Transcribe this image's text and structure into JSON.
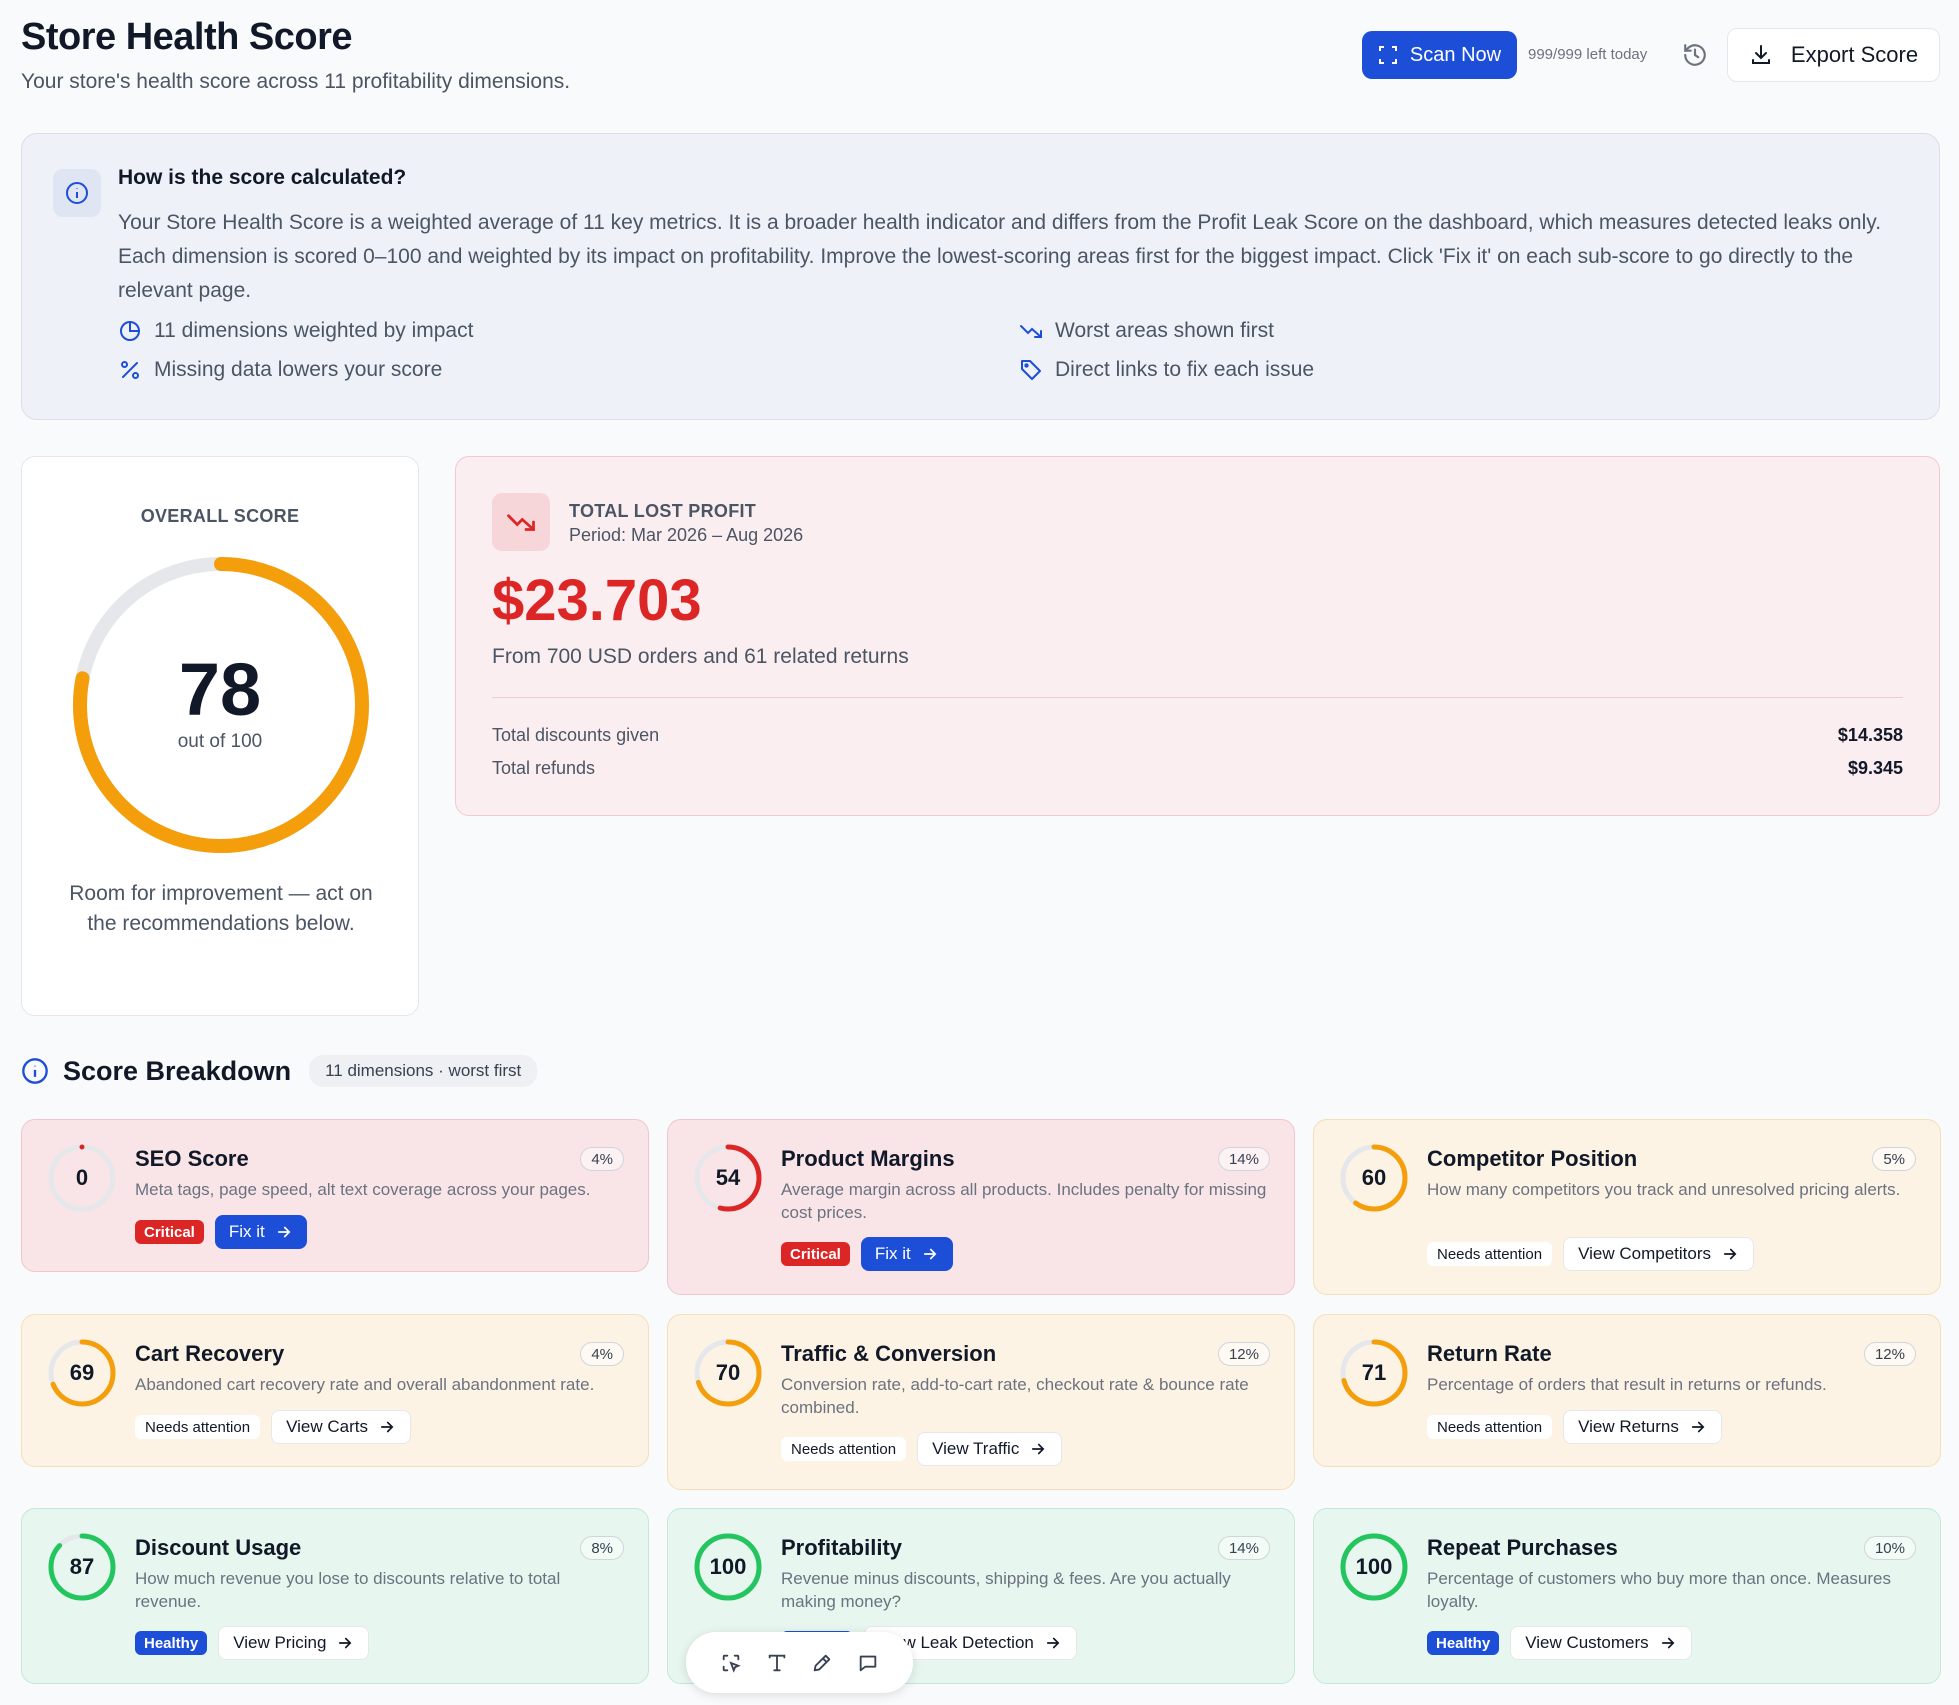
{
  "header": {
    "title": "Store Health Score",
    "subtitle": "Your store's health score across 11 profitability dimensions.",
    "scan_label": "Scan Now",
    "left_today": "999/999 left today",
    "export_label": "Export Score"
  },
  "info": {
    "title": "How is the score calculated?",
    "body": "Your Store Health Score is a weighted average of 11 key metrics. It is a broader health indicator and differs from the Profit Leak Score on the dashboard, which measures detected leaks only. Each dimension is scored 0–100 and weighted by its impact on profitability. Improve the lowest-scoring areas first for the biggest impact. Click 'Fix it' on each sub-score to go directly to the relevant page.",
    "features": [
      "11 dimensions weighted by impact",
      "Worst areas shown first",
      "Missing data lowers your score",
      "Direct links to fix each issue"
    ]
  },
  "overall": {
    "label": "OVERALL SCORE",
    "score": 78,
    "out_of": "out of 100",
    "message": "Room for improvement — act on the recommendations below.",
    "ring_color": "#f59e0b"
  },
  "lost": {
    "title": "TOTAL LOST PROFIT",
    "period": "Period: Mar 2026 – Aug 2026",
    "amount": "$23.703",
    "from": "From 700 USD orders and 61 related returns",
    "rows": [
      {
        "label": "Total discounts given",
        "value": "$14.358"
      },
      {
        "label": "Total refunds",
        "value": "$9.345"
      }
    ]
  },
  "breakdown": {
    "title": "Score Breakdown",
    "pill": "11 dimensions · worst first",
    "cards": [
      {
        "score": 0,
        "title": "SEO Score",
        "weight": "4%",
        "desc": "Meta tags, page speed, alt text coverage across your pages.",
        "status": "Critical",
        "action": "Fix it"
      },
      {
        "score": 54,
        "title": "Product Margins",
        "weight": "14%",
        "desc": "Average margin across all products. Includes penalty for missing cost prices.",
        "status": "Critical",
        "action": "Fix it"
      },
      {
        "score": 60,
        "title": "Competitor Position",
        "weight": "5%",
        "desc": "How many competitors you track and unresolved pricing alerts.",
        "status": "Needs attention",
        "action": "View Competitors"
      },
      {
        "score": 69,
        "title": "Cart Recovery",
        "weight": "4%",
        "desc": "Abandoned cart recovery rate and overall abandonment rate.",
        "status": "Needs attention",
        "action": "View Carts"
      },
      {
        "score": 70,
        "title": "Traffic & Conversion",
        "weight": "12%",
        "desc": "Conversion rate, add-to-cart rate, checkout rate & bounce rate combined.",
        "status": "Needs attention",
        "action": "View Traffic"
      },
      {
        "score": 71,
        "title": "Return Rate",
        "weight": "12%",
        "desc": "Percentage of orders that result in returns or refunds.",
        "status": "Needs attention",
        "action": "View Returns"
      },
      {
        "score": 87,
        "title": "Discount Usage",
        "weight": "8%",
        "desc": "How much revenue you lose to discounts relative to total revenue.",
        "status": "Healthy",
        "action": "View Pricing"
      },
      {
        "score": 100,
        "title": "Profitability",
        "weight": "14%",
        "desc": "Revenue minus discounts, shipping & fees. Are you actually making money?",
        "status": "Healthy",
        "action": "View Leak Detection"
      },
      {
        "score": 100,
        "title": "Repeat Purchases",
        "weight": "10%",
        "desc": "Percentage of customers who buy more than once. Measures loyalty.",
        "status": "Healthy",
        "action": "View Customers"
      }
    ]
  },
  "colors": {
    "critical": "#dc2626",
    "warning": "#f59e0b",
    "healthy": "#22c55e",
    "accent": "#1d4ed8"
  }
}
